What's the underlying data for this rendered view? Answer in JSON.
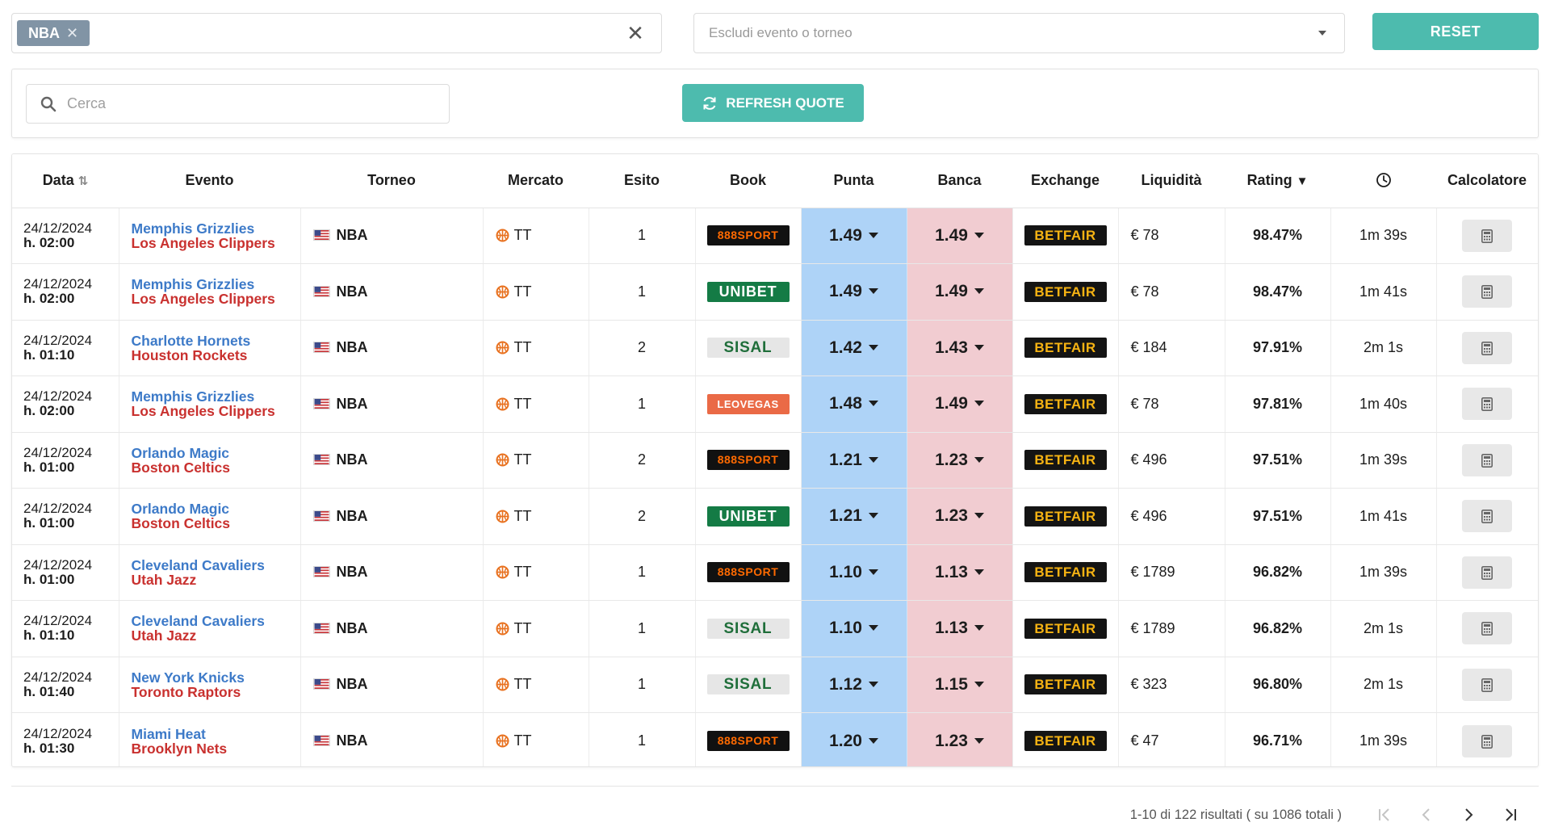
{
  "filters": {
    "chip_label": "NBA",
    "chip_remove": "✕",
    "clear": "✕",
    "exclude_placeholder": "Escludi evento o torneo",
    "reset_label": "RESET"
  },
  "search": {
    "placeholder": "Cerca",
    "refresh_label": "REFRESH QUOTE"
  },
  "columns": {
    "data": "Data",
    "evento": "Evento",
    "torneo": "Torneo",
    "mercato": "Mercato",
    "esito": "Esito",
    "book": "Book",
    "punta": "Punta",
    "banca": "Banca",
    "exchange": "Exchange",
    "liquidita": "Liquidità",
    "rating": "Rating",
    "calcolatore": "Calcolatore"
  },
  "sort_icons": {
    "data": "⇅",
    "rating": "▼"
  },
  "rows": [
    {
      "date": "24/12/2024",
      "time": "h. 02:00",
      "home": "Memphis Grizzlies",
      "away": "Los Angeles Clippers",
      "torneo": "NBA",
      "mercato": "TT",
      "esito": "1",
      "book": "888SPORT",
      "book_style": "888",
      "punta": "1.49",
      "banca": "1.49",
      "exchange": "BETFAIR",
      "liquidita": "€ 78",
      "rating": "98.47%",
      "age": "1m 39s"
    },
    {
      "date": "24/12/2024",
      "time": "h. 02:00",
      "home": "Memphis Grizzlies",
      "away": "Los Angeles Clippers",
      "torneo": "NBA",
      "mercato": "TT",
      "esito": "1",
      "book": "UNIBET",
      "book_style": "unibet",
      "punta": "1.49",
      "banca": "1.49",
      "exchange": "BETFAIR",
      "liquidita": "€ 78",
      "rating": "98.47%",
      "age": "1m 41s"
    },
    {
      "date": "24/12/2024",
      "time": "h. 01:10",
      "home": "Charlotte Hornets",
      "away": "Houston Rockets",
      "torneo": "NBA",
      "mercato": "TT",
      "esito": "2",
      "book": "SISAL",
      "book_style": "sisal",
      "punta": "1.42",
      "banca": "1.43",
      "exchange": "BETFAIR",
      "liquidita": "€ 184",
      "rating": "97.91%",
      "age": "2m 1s"
    },
    {
      "date": "24/12/2024",
      "time": "h. 02:00",
      "home": "Memphis Grizzlies",
      "away": "Los Angeles Clippers",
      "torneo": "NBA",
      "mercato": "TT",
      "esito": "1",
      "book": "LEOVEGAS",
      "book_style": "leovegas",
      "punta": "1.48",
      "banca": "1.49",
      "exchange": "BETFAIR",
      "liquidita": "€ 78",
      "rating": "97.81%",
      "age": "1m 40s"
    },
    {
      "date": "24/12/2024",
      "time": "h. 01:00",
      "home": "Orlando Magic",
      "away": "Boston Celtics",
      "torneo": "NBA",
      "mercato": "TT",
      "esito": "2",
      "book": "888SPORT",
      "book_style": "888",
      "punta": "1.21",
      "banca": "1.23",
      "exchange": "BETFAIR",
      "liquidita": "€ 496",
      "rating": "97.51%",
      "age": "1m 39s"
    },
    {
      "date": "24/12/2024",
      "time": "h. 01:00",
      "home": "Orlando Magic",
      "away": "Boston Celtics",
      "torneo": "NBA",
      "mercato": "TT",
      "esito": "2",
      "book": "UNIBET",
      "book_style": "unibet",
      "punta": "1.21",
      "banca": "1.23",
      "exchange": "BETFAIR",
      "liquidita": "€ 496",
      "rating": "97.51%",
      "age": "1m 41s"
    },
    {
      "date": "24/12/2024",
      "time": "h. 01:00",
      "home": "Cleveland Cavaliers",
      "away": "Utah Jazz",
      "torneo": "NBA",
      "mercato": "TT",
      "esito": "1",
      "book": "888SPORT",
      "book_style": "888",
      "punta": "1.10",
      "banca": "1.13",
      "exchange": "BETFAIR",
      "liquidita": "€ 1789",
      "rating": "96.82%",
      "age": "1m 39s"
    },
    {
      "date": "24/12/2024",
      "time": "h. 01:10",
      "home": "Cleveland Cavaliers",
      "away": "Utah Jazz",
      "torneo": "NBA",
      "mercato": "TT",
      "esito": "1",
      "book": "SISAL",
      "book_style": "sisal",
      "punta": "1.10",
      "banca": "1.13",
      "exchange": "BETFAIR",
      "liquidita": "€ 1789",
      "rating": "96.82%",
      "age": "2m 1s"
    },
    {
      "date": "24/12/2024",
      "time": "h. 01:40",
      "home": "New York Knicks",
      "away": "Toronto Raptors",
      "torneo": "NBA",
      "mercato": "TT",
      "esito": "1",
      "book": "SISAL",
      "book_style": "sisal",
      "punta": "1.12",
      "banca": "1.15",
      "exchange": "BETFAIR",
      "liquidita": "€ 323",
      "rating": "96.80%",
      "age": "2m 1s"
    },
    {
      "date": "24/12/2024",
      "time": "h. 01:30",
      "home": "Miami Heat",
      "away": "Brooklyn Nets",
      "torneo": "NBA",
      "mercato": "TT",
      "esito": "1",
      "book": "888SPORT",
      "book_style": "888",
      "punta": "1.20",
      "banca": "1.23",
      "exchange": "BETFAIR",
      "liquidita": "€ 47",
      "rating": "96.71%",
      "age": "1m 39s"
    }
  ],
  "pagination": {
    "summary": "1-10 di 122 risultati ( su 1086 totali )"
  },
  "colors": {
    "accent": "#4dbbae",
    "home_team": "#3d7ac8",
    "away_team": "#c9312f",
    "punta_bg": "#aed3f7",
    "banca_bg": "#f1ccd1",
    "chip_bg": "#8194a5"
  },
  "icons": {
    "search": "search-icon",
    "refresh": "refresh-icon",
    "clock": "clock-icon",
    "calculator": "calculator-icon",
    "basketball": "basketball-icon",
    "flag": "us-flag-icon"
  }
}
